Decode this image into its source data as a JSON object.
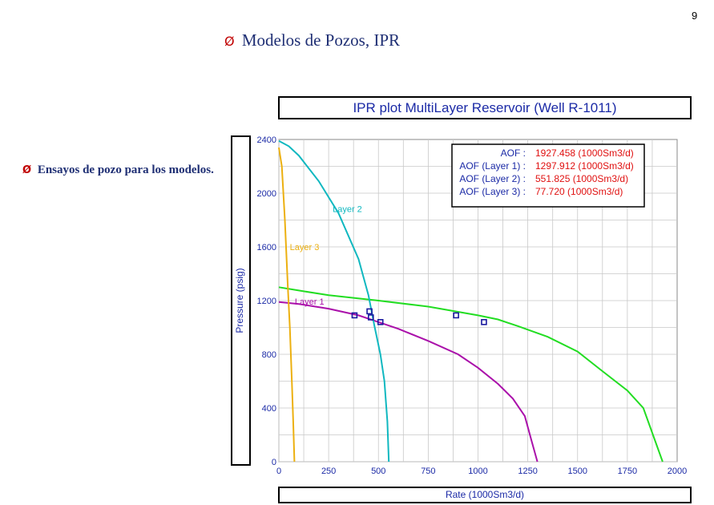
{
  "page_number": "9",
  "slide": {
    "title_bullet": "Ø",
    "title": "Modelos de Pozos, IPR",
    "text_bullet": "Ø",
    "text": "Ensayos de pozo para los modelos."
  },
  "colors": {
    "total": "#22dd22",
    "layer1": "#aa10aa",
    "layer2": "#10b8c0",
    "layer3": "#ecb010",
    "axis_text": "#1b2aa6",
    "value_text": "#e01010",
    "grid": "#c8c8c8",
    "points": "#1a1aa0"
  },
  "chart_data": {
    "type": "line",
    "title": "IPR plot  MultiLayer Reservoir (Well R-1011)",
    "xlabel": "Rate  (1000Sm3/d)",
    "ylabel": "Pressure  (psig)",
    "xlim": [
      0,
      2000
    ],
    "ylim": [
      0,
      2400
    ],
    "x_ticks": [
      "0",
      "250",
      "500",
      "750",
      "1000",
      "1250",
      "1500",
      "1750",
      "2000"
    ],
    "y_ticks": [
      "0",
      "400",
      "800",
      "1200",
      "1600",
      "2000",
      "2400"
    ],
    "grid": true,
    "legend_position": "top-right",
    "aof_legend": [
      {
        "label": "AOF :",
        "value": "1927.458 (1000Sm3/d)"
      },
      {
        "label": "AOF (Layer 1) :",
        "value": "1297.912 (1000Sm3/d)"
      },
      {
        "label": "AOF (Layer 2) :",
        "value": "551.825 (1000Sm3/d)"
      },
      {
        "label": "AOF (Layer 3) :",
        "value": "77.720 (1000Sm3/d)"
      }
    ],
    "series": [
      {
        "key": "total",
        "points": [
          [
            0,
            1300
          ],
          [
            100,
            1275
          ],
          [
            250,
            1240
          ],
          [
            500,
            1200
          ],
          [
            750,
            1155
          ],
          [
            1000,
            1090
          ],
          [
            1100,
            1060
          ],
          [
            1200,
            1010
          ],
          [
            1350,
            930
          ],
          [
            1500,
            820
          ],
          [
            1620,
            680
          ],
          [
            1750,
            530
          ],
          [
            1830,
            400
          ],
          [
            1927,
            0
          ]
        ]
      },
      {
        "key": "layer1",
        "label": "Layer 1",
        "label_at": [
          80,
          1170
        ],
        "points": [
          [
            0,
            1190
          ],
          [
            100,
            1175
          ],
          [
            250,
            1140
          ],
          [
            400,
            1090
          ],
          [
            500,
            1040
          ],
          [
            600,
            990
          ],
          [
            750,
            900
          ],
          [
            900,
            800
          ],
          [
            1000,
            700
          ],
          [
            1100,
            580
          ],
          [
            1175,
            470
          ],
          [
            1235,
            340
          ],
          [
            1270,
            150
          ],
          [
            1298,
            0
          ]
        ]
      },
      {
        "key": "layer2",
        "label": "Layer 2",
        "label_at": [
          270,
          1860
        ],
        "points": [
          [
            0,
            2390
          ],
          [
            50,
            2350
          ],
          [
            100,
            2280
          ],
          [
            200,
            2090
          ],
          [
            300,
            1850
          ],
          [
            400,
            1510
          ],
          [
            450,
            1240
          ],
          [
            480,
            1010
          ],
          [
            510,
            800
          ],
          [
            530,
            600
          ],
          [
            545,
            300
          ],
          [
            552,
            0
          ]
        ]
      },
      {
        "key": "layer3",
        "label": "Layer 3",
        "label_at": [
          55,
          1575
        ],
        "points": [
          [
            0,
            2340
          ],
          [
            15,
            2200
          ],
          [
            30,
            1800
          ],
          [
            45,
            1300
          ],
          [
            55,
            1000
          ],
          [
            65,
            600
          ],
          [
            72,
            300
          ],
          [
            78,
            0
          ]
        ]
      }
    ],
    "test_points": [
      [
        380,
        1090
      ],
      [
        455,
        1120
      ],
      [
        462,
        1075
      ],
      [
        510,
        1040
      ],
      [
        890,
        1090
      ],
      [
        1030,
        1040
      ]
    ]
  }
}
